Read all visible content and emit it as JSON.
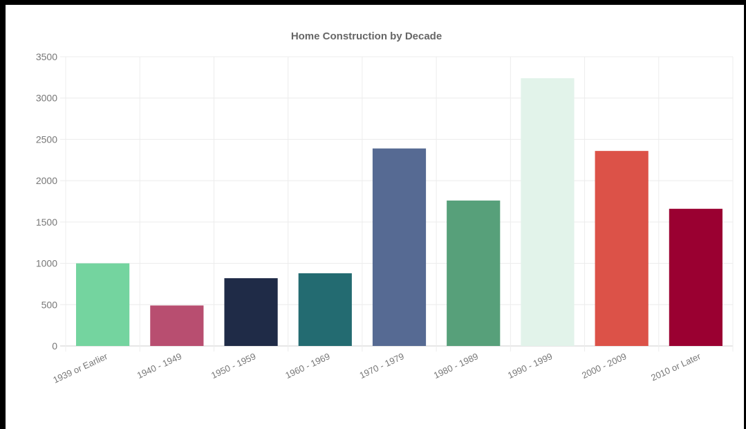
{
  "chart_data": {
    "type": "bar",
    "title": "Home Construction by Decade",
    "xlabel": "",
    "ylabel": "",
    "categories": [
      "1939 or Earlier",
      "1940 - 1949",
      "1950 - 1959",
      "1960 - 1969",
      "1970 - 1979",
      "1980 - 1989",
      "1990 - 1999",
      "2000 - 2009",
      "2010 or Later"
    ],
    "values": [
      1000,
      490,
      820,
      880,
      2390,
      1760,
      3240,
      2360,
      1660
    ],
    "colors": [
      "#74d49f",
      "#b84e70",
      "#1f2b47",
      "#236b71",
      "#566a93",
      "#57a07a",
      "#e2f3ea",
      "#dc5248",
      "#9a0031"
    ],
    "ylim": [
      0,
      3500
    ],
    "yticks": [
      "0",
      "500",
      "1000",
      "1500",
      "2000",
      "2500",
      "3000",
      "3500"
    ],
    "grid": true,
    "legend": "none"
  }
}
